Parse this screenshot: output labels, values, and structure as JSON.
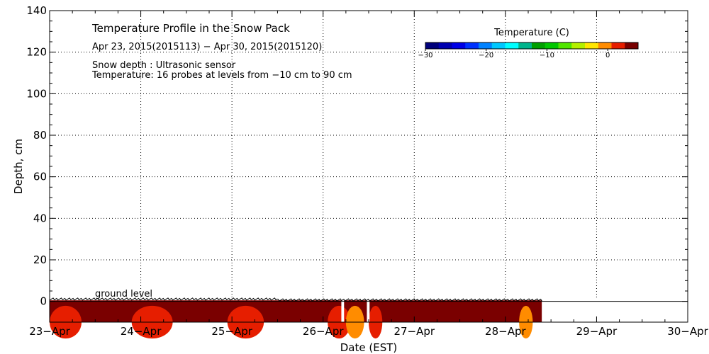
{
  "chart_data": {
    "type": "heatmap",
    "title": "Temperature Profile in the Snow Pack",
    "subtitle": "Apr 23, 2015(2015113) − Apr 30, 2015(2015120)",
    "notes": [
      "Snow depth : Ultrasonic sensor",
      "Temperature: 16 probes at levels from −10 cm to 90 cm"
    ],
    "annotation": "ground level",
    "xlabel": "Date (EST)",
    "ylabel": "Depth, cm",
    "x_ticks": [
      "23−Apr",
      "24−Apr",
      "25−Apr",
      "26−Apr",
      "27−Apr",
      "28−Apr",
      "29−Apr",
      "30−Apr"
    ],
    "xlim_days": [
      0,
      7
    ],
    "ylim": [
      -10,
      140
    ],
    "y_ticks": [
      0,
      20,
      40,
      60,
      80,
      100,
      120,
      140
    ],
    "y_tick_labels": [
      "0",
      "20",
      "40",
      "60",
      "80",
      "100",
      "120",
      "140"
    ],
    "grid": true,
    "snow_depth_cm": 0.5,
    "data_end_day": 5.4,
    "data_gaps_day": [
      [
        3.2,
        3.23
      ],
      [
        3.48,
        3.51
      ]
    ],
    "colorbar": {
      "title": "Temperature (C)",
      "range": [
        -30,
        5
      ],
      "ticks": [
        -30,
        -20,
        -10,
        0
      ],
      "tick_labels": [
        "−30",
        "−20",
        "−10",
        "0"
      ],
      "colors": [
        "#00007a",
        "#0000b0",
        "#0000e6",
        "#0032ff",
        "#0082ff",
        "#00c8ff",
        "#00ffff",
        "#00b48c",
        "#00a000",
        "#00c800",
        "#50e600",
        "#b4f000",
        "#ffe600",
        "#ff8c00",
        "#e61e00",
        "#780000"
      ]
    }
  }
}
